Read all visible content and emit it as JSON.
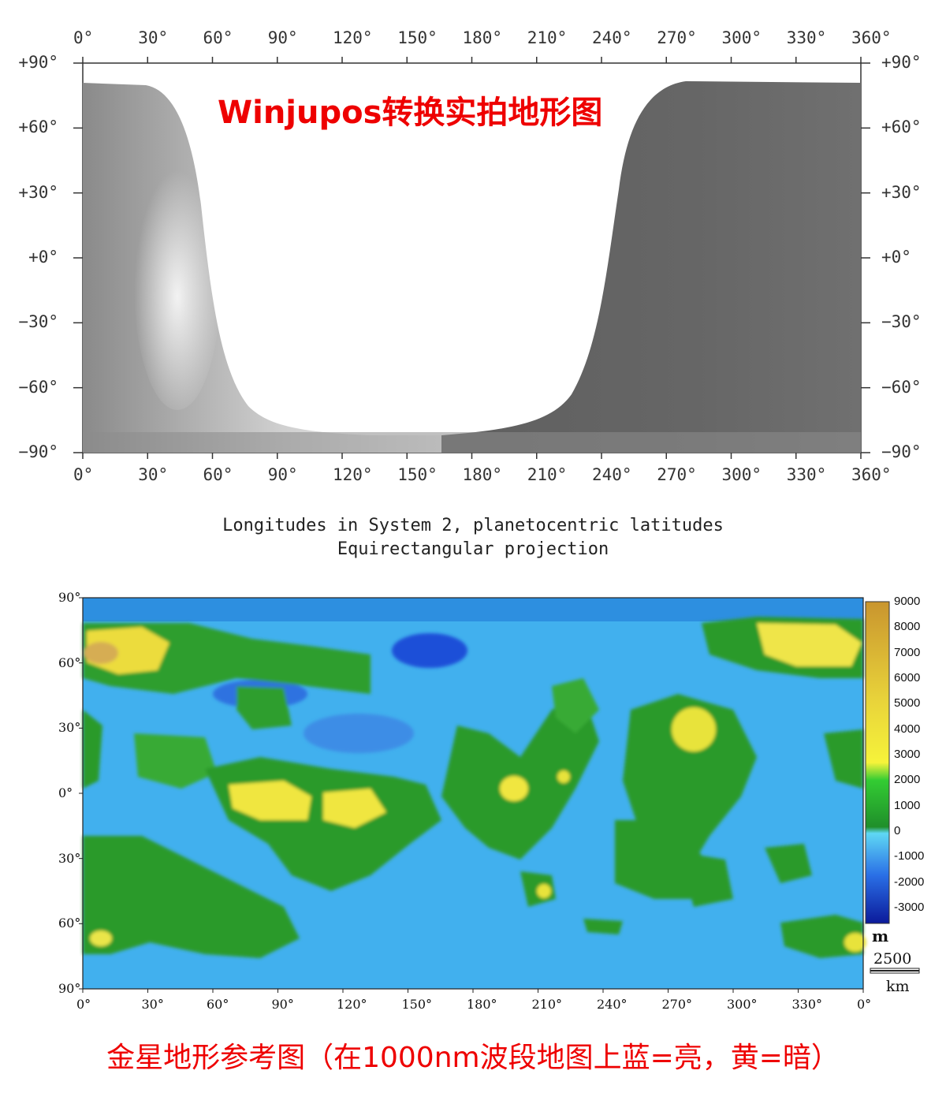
{
  "top_map": {
    "title": "Winjupos转换实拍地形图",
    "lon_ticks": [
      "0°",
      "30°",
      "60°",
      "90°",
      "120°",
      "150°",
      "180°",
      "210°",
      "240°",
      "270°",
      "300°",
      "330°",
      "360°"
    ],
    "lat_ticks": [
      "+90°",
      "+60°",
      "+30°",
      "+0°",
      "−30°",
      "−60°",
      "−90°"
    ],
    "caption_line1": "Longitudes in System 2, planetocentric latitudes",
    "caption_line2": "Equirectangular projection"
  },
  "bottom_map": {
    "lon_ticks": [
      "0°",
      "30°",
      "60°",
      "90°",
      "120°",
      "150°",
      "180°",
      "210°",
      "240°",
      "270°",
      "300°",
      "330°",
      "0°"
    ],
    "lat_ticks": [
      "90°",
      "60°",
      "30°",
      "0°",
      "30°",
      "60°",
      "90°"
    ],
    "legend": {
      "values": [
        "9000",
        "8000",
        "7000",
        "6000",
        "5000",
        "4000",
        "3000",
        "2000",
        "1000",
        "0",
        "-1000",
        "-2000",
        "-3000"
      ],
      "unit": "m",
      "scale_value": "2500",
      "scale_unit": "km"
    }
  },
  "footer_caption": "金星地形参考图（在1000nm波段地图上蓝=亮，黄=暗）",
  "colors": {
    "title_red": "#ee0000",
    "deep_blue": "#1a3fd6",
    "sky_blue": "#3aa8f0",
    "cyan": "#4cd4ee",
    "green": "#2fa02f",
    "yellow": "#f2e64a",
    "tan": "#d9b05a"
  }
}
